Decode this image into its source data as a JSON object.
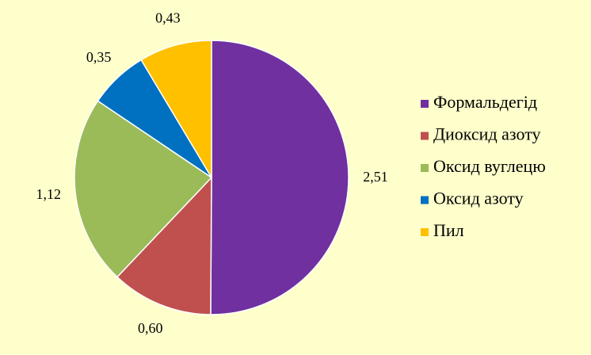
{
  "chart_data": {
    "type": "pie",
    "categories": [
      "Формальдегід",
      "Диоксид азоту",
      "Оксид вуглецю",
      "Оксид азоту",
      "Пил"
    ],
    "values": [
      2.51,
      0.6,
      1.12,
      0.35,
      0.43
    ],
    "value_labels": [
      "2,51",
      "0,60",
      "1,12",
      "0,35",
      "0,43"
    ],
    "colors": [
      "#7030A0",
      "#C0504D",
      "#9BBB59",
      "#0070C0",
      "#FFC000"
    ],
    "legend": "right"
  }
}
